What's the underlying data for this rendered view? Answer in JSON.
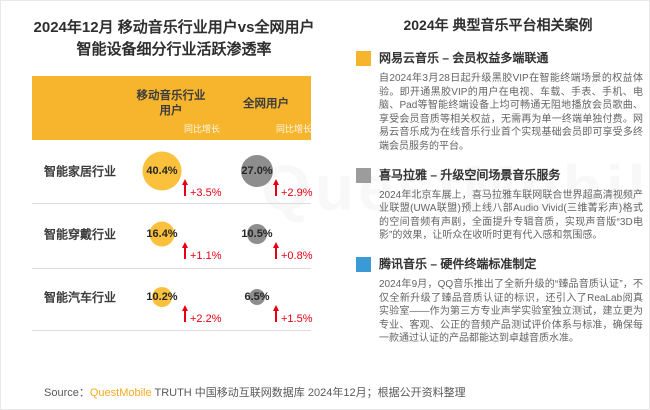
{
  "left": {
    "title_line1": "2024年12月 移动音乐行业用户vs全网用户",
    "title_line2": "智能设备细分行业活跃渗透率",
    "header": {
      "col1_line1": "移动音乐行业",
      "col1_line2": "用户",
      "col2": "全网用户",
      "yoy_label": "同比增长"
    },
    "rows": [
      {
        "label": "智能家居行业",
        "music_value": "40.4%",
        "music_growth": "+3.5%",
        "all_value": "27.0%",
        "all_growth": "+2.9%"
      },
      {
        "label": "智能穿戴行业",
        "music_value": "16.4%",
        "music_growth": "+1.1%",
        "all_value": "10.5%",
        "all_growth": "+0.8%"
      },
      {
        "label": "智能汽车行业",
        "music_value": "10.2%",
        "music_growth": "+2.2%",
        "all_value": "6.5%",
        "all_growth": "+1.5%"
      }
    ]
  },
  "right": {
    "title": "2024年 典型音乐平台相关案例",
    "sections": [
      {
        "marker_color": "#F7B52D",
        "heading": "网易云音乐 – 会员权益多端联通",
        "body": "自2024年3月28日起升级黑胶VIP在智能终端场景的权益体验。即开通黑胶VIP的用户在电视、车载、手表、手机、电脑、Pad等智能终端设备上均可畅通无阻地播放会员歌曲、享受会员音质等相关权益，无需再为单一终端单独付费。网易云音乐成为在线音乐行业首个实现基础会员即可享受多终端会员服务的平台。"
      },
      {
        "marker_color": "#9C9C9C",
        "heading": "喜马拉雅 – 升级空间场景音乐服务",
        "body": "2024年北京车展上，喜马拉雅车联网联合世界超高清视频产业联盟(UWA联盟)预上线八部Audio Vivid(三维菁彩声)格式的空间音频有声剧，全面提升专辑音质，实现声音版“3D电影”的效果，让听众在收听时更有代入感和氛围感。"
      },
      {
        "marker_color": "#3A9AD5",
        "heading": "腾讯音乐 – 硬件终端标准制定",
        "body": "2024年9月，QQ音乐推出了全新升级的“臻品音质认证”，不仅全新升级了臻品音质认证的标识，还引入了ReaLab阅真实验室——作为第三方专业声学实验室独立测试，建立更为专业、客观、公正的音频产品测试评价体系与标准，确保每一款通过认证的产品都能达到卓越音质水准。"
      }
    ]
  },
  "footer": {
    "source_prefix": "Source：",
    "source_brand": "QuestMobile",
    "source_rest": " TRUTH 中国移动互联网数据库 2024年12月；根据公开资料整理"
  },
  "watermark": "QuestMobile",
  "colors": {
    "header_yellow": "#F7B52D",
    "bubble_yellow": "#FBC13C",
    "bubble_gray": "#8E8E8E",
    "growth_red": "#E60012",
    "source_orange": "#F7A823"
  },
  "chart_data": {
    "type": "bubble",
    "title": "2024年12月 移动音乐行业用户vs全网用户智能设备细分行业活跃渗透率",
    "categories": [
      "智能家居行业",
      "智能穿戴行业",
      "智能汽车行业"
    ],
    "series": [
      {
        "name": "移动音乐行业用户",
        "values": [
          40.4,
          16.4,
          10.2
        ],
        "yoy_growth_pp": [
          3.5,
          1.1,
          2.2
        ],
        "color": "#FBC13C"
      },
      {
        "name": "全网用户",
        "values": [
          27.0,
          10.5,
          6.5
        ],
        "yoy_growth_pp": [
          2.9,
          0.8,
          1.5
        ],
        "color": "#8E8E8E"
      }
    ],
    "unit": "%",
    "growth_label": "同比增长",
    "legend_position": "header-row",
    "grid": false,
    "source": "QuestMobile TRUTH 中国移动互联网数据库 2024年12月；根据公开资料整理"
  }
}
